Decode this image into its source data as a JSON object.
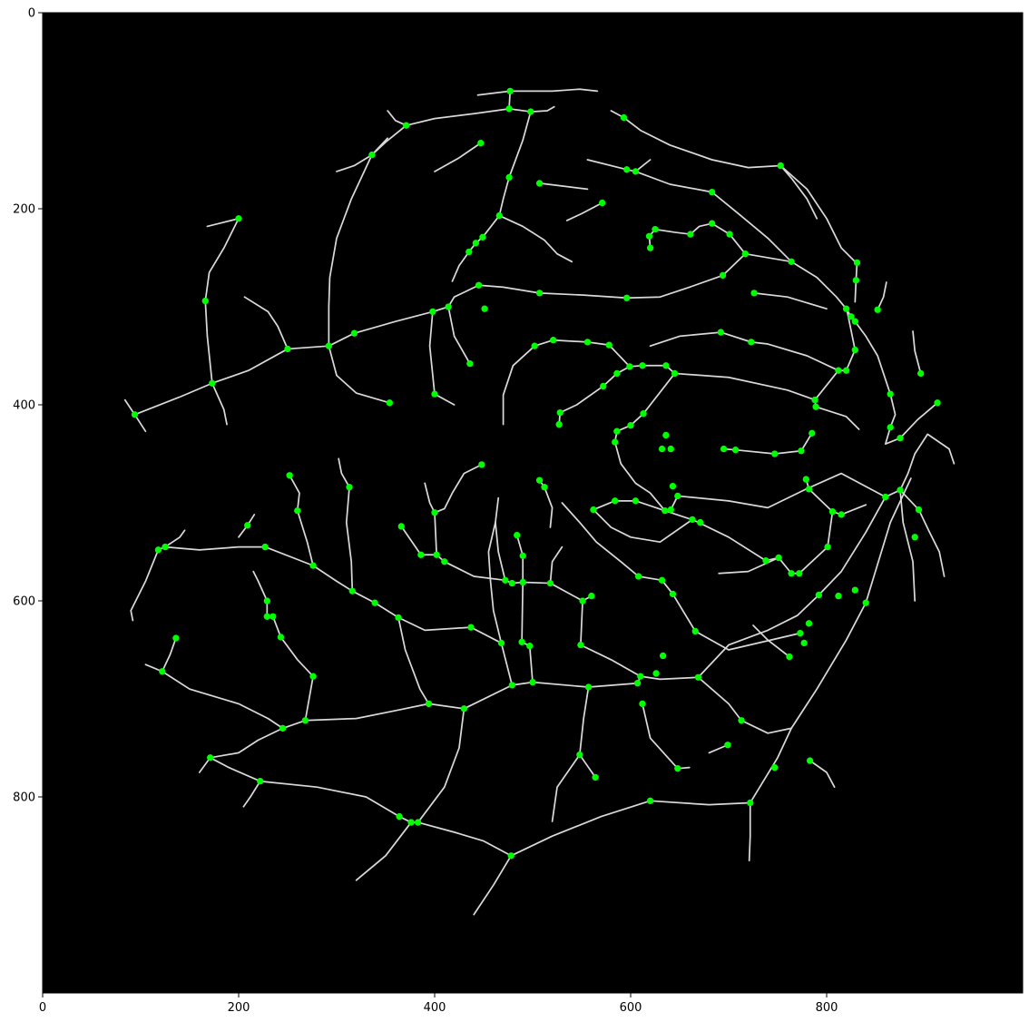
{
  "image": {
    "description_free": true,
    "colors": {
      "background": "#000000",
      "vessel": "#d9d9d9",
      "junction_marker": "#00ff00",
      "axes": "#000000"
    }
  },
  "axes": {
    "xlim": [
      0,
      1000
    ],
    "ylim": [
      1000,
      0
    ],
    "x_ticks": [
      "0",
      "200",
      "400",
      "600",
      "800"
    ],
    "y_ticks": [
      "0",
      "200",
      "400",
      "600",
      "800"
    ],
    "x_tick_values": [
      0,
      200,
      400,
      600,
      800
    ],
    "y_tick_values": [
      0,
      200,
      400,
      600,
      800
    ]
  },
  "junctions": [
    [
      477,
      80
    ],
    [
      476,
      98
    ],
    [
      498,
      101
    ],
    [
      371,
      115
    ],
    [
      336,
      145
    ],
    [
      447,
      133
    ],
    [
      593,
      107
    ],
    [
      596,
      160
    ],
    [
      605,
      162
    ],
    [
      683,
      183
    ],
    [
      753,
      156
    ],
    [
      476,
      168
    ],
    [
      507,
      174
    ],
    [
      571,
      194
    ],
    [
      200,
      210
    ],
    [
      466,
      207
    ],
    [
      449,
      229
    ],
    [
      442,
      235
    ],
    [
      435,
      244
    ],
    [
      620,
      240
    ],
    [
      619,
      228
    ],
    [
      625,
      221
    ],
    [
      661,
      226
    ],
    [
      683,
      215
    ],
    [
      701,
      226
    ],
    [
      717,
      246
    ],
    [
      764,
      254
    ],
    [
      831,
      255
    ],
    [
      694,
      268
    ],
    [
      445,
      278
    ],
    [
      507,
      286
    ],
    [
      596,
      291
    ],
    [
      726,
      286
    ],
    [
      820,
      302
    ],
    [
      825,
      310
    ],
    [
      829,
      315
    ],
    [
      852,
      303
    ],
    [
      830,
      273
    ],
    [
      166,
      294
    ],
    [
      398,
      305
    ],
    [
      414,
      300
    ],
    [
      451,
      302
    ],
    [
      250,
      343
    ],
    [
      292,
      340
    ],
    [
      318,
      327
    ],
    [
      436,
      358
    ],
    [
      502,
      340
    ],
    [
      521,
      334
    ],
    [
      556,
      336
    ],
    [
      578,
      339
    ],
    [
      599,
      361
    ],
    [
      612,
      360
    ],
    [
      636,
      360
    ],
    [
      645,
      368
    ],
    [
      829,
      344
    ],
    [
      812,
      365
    ],
    [
      820,
      365
    ],
    [
      896,
      368
    ],
    [
      692,
      326
    ],
    [
      723,
      336
    ],
    [
      788,
      395
    ],
    [
      865,
      389
    ],
    [
      913,
      398
    ],
    [
      173,
      378
    ],
    [
      354,
      398
    ],
    [
      400,
      389
    ],
    [
      94,
      410
    ],
    [
      528,
      408
    ],
    [
      527,
      420
    ],
    [
      572,
      381
    ],
    [
      586,
      368
    ],
    [
      586,
      427
    ],
    [
      600,
      421
    ],
    [
      613,
      409
    ],
    [
      584,
      438
    ],
    [
      636,
      431
    ],
    [
      632,
      445
    ],
    [
      641,
      445
    ],
    [
      695,
      445
    ],
    [
      707,
      446
    ],
    [
      747,
      450
    ],
    [
      774,
      447
    ],
    [
      785,
      429
    ],
    [
      865,
      423
    ],
    [
      875,
      434
    ],
    [
      789,
      402
    ],
    [
      448,
      461
    ],
    [
      507,
      477
    ],
    [
      512,
      484
    ],
    [
      252,
      472
    ],
    [
      313,
      484
    ],
    [
      400,
      510
    ],
    [
      562,
      507
    ],
    [
      584,
      498
    ],
    [
      605,
      498
    ],
    [
      635,
      508
    ],
    [
      641,
      507
    ],
    [
      648,
      493
    ],
    [
      643,
      483
    ],
    [
      663,
      517
    ],
    [
      671,
      520
    ],
    [
      779,
      476
    ],
    [
      782,
      486
    ],
    [
      806,
      509
    ],
    [
      815,
      512
    ],
    [
      860,
      494
    ],
    [
      875,
      487
    ],
    [
      894,
      507
    ],
    [
      890,
      535
    ],
    [
      209,
      523
    ],
    [
      260,
      508
    ],
    [
      366,
      524
    ],
    [
      386,
      553
    ],
    [
      402,
      553
    ],
    [
      410,
      560
    ],
    [
      118,
      548
    ],
    [
      125,
      545
    ],
    [
      227,
      545
    ],
    [
      276,
      564
    ],
    [
      484,
      533
    ],
    [
      490,
      554
    ],
    [
      472,
      579
    ],
    [
      479,
      582
    ],
    [
      490,
      581
    ],
    [
      518,
      582
    ],
    [
      551,
      600
    ],
    [
      560,
      595
    ],
    [
      608,
      575
    ],
    [
      632,
      579
    ],
    [
      643,
      593
    ],
    [
      738,
      559
    ],
    [
      751,
      556
    ],
    [
      764,
      572
    ],
    [
      772,
      572
    ],
    [
      801,
      545
    ],
    [
      829,
      589
    ],
    [
      812,
      595
    ],
    [
      792,
      594
    ],
    [
      840,
      602
    ],
    [
      316,
      590
    ],
    [
      339,
      602
    ],
    [
      363,
      617
    ],
    [
      229,
      600
    ],
    [
      229,
      616
    ],
    [
      235,
      616
    ],
    [
      243,
      637
    ],
    [
      276,
      677
    ],
    [
      136,
      638
    ],
    [
      122,
      672
    ],
    [
      437,
      627
    ],
    [
      468,
      643
    ],
    [
      489,
      642
    ],
    [
      497,
      646
    ],
    [
      549,
      645
    ],
    [
      666,
      631
    ],
    [
      773,
      633
    ],
    [
      777,
      643
    ],
    [
      782,
      623
    ],
    [
      762,
      657
    ],
    [
      633,
      656
    ],
    [
      610,
      677
    ],
    [
      626,
      674
    ],
    [
      669,
      678
    ],
    [
      245,
      730
    ],
    [
      268,
      722
    ],
    [
      394,
      705
    ],
    [
      430,
      710
    ],
    [
      479,
      686
    ],
    [
      500,
      683
    ],
    [
      557,
      688
    ],
    [
      607,
      684
    ],
    [
      612,
      705
    ],
    [
      713,
      722
    ],
    [
      699,
      747
    ],
    [
      747,
      770
    ],
    [
      783,
      763
    ],
    [
      548,
      757
    ],
    [
      564,
      780
    ],
    [
      648,
      771
    ],
    [
      620,
      804
    ],
    [
      722,
      806
    ],
    [
      171,
      760
    ],
    [
      222,
      784
    ],
    [
      364,
      820
    ],
    [
      376,
      826
    ],
    [
      383,
      826
    ],
    [
      478,
      860
    ]
  ]
}
